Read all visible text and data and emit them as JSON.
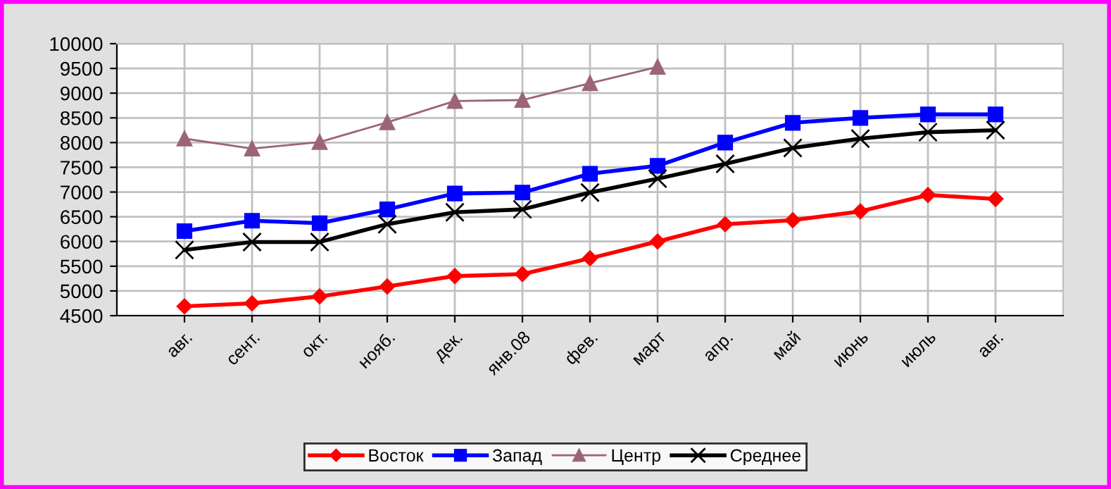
{
  "chart_data": {
    "type": "line",
    "categories": [
      "авг.",
      "сент.",
      "окт.",
      "нояб.",
      "дек.",
      "янв.08",
      "фев.",
      "март",
      "апр.",
      "май",
      "июнь",
      "июль",
      "авг."
    ],
    "series": [
      {
        "name": "Восток",
        "color": "#ff0000",
        "marker": "diamond",
        "values": [
          4690,
          4750,
          4890,
          5090,
          5300,
          5340,
          5660,
          6000,
          6350,
          6430,
          6610,
          6940,
          6860
        ]
      },
      {
        "name": "Запад",
        "color": "#0000ff",
        "marker": "square",
        "values": [
          6210,
          6420,
          6370,
          6650,
          6970,
          6990,
          7370,
          7530,
          8000,
          8400,
          8500,
          8570,
          8570
        ]
      },
      {
        "name": "Центр",
        "color": "#9c6478",
        "marker": "triangle",
        "values": [
          8080,
          7880,
          8010,
          8410,
          8840,
          8860,
          9200,
          9530,
          null,
          null,
          null,
          null,
          null
        ]
      },
      {
        "name": "Среднее",
        "color": "#000000",
        "marker": "cross",
        "values": [
          5830,
          5990,
          5990,
          6350,
          6590,
          6650,
          6990,
          7270,
          7570,
          7890,
          8080,
          8210,
          8250
        ]
      }
    ],
    "ylim": [
      4500,
      10000
    ],
    "yticks": [
      4500,
      5000,
      5500,
      6000,
      6500,
      7000,
      7500,
      8000,
      8500,
      9000,
      9500,
      10000
    ],
    "grid": true,
    "legend": "bottom",
    "line_style": "solid"
  }
}
